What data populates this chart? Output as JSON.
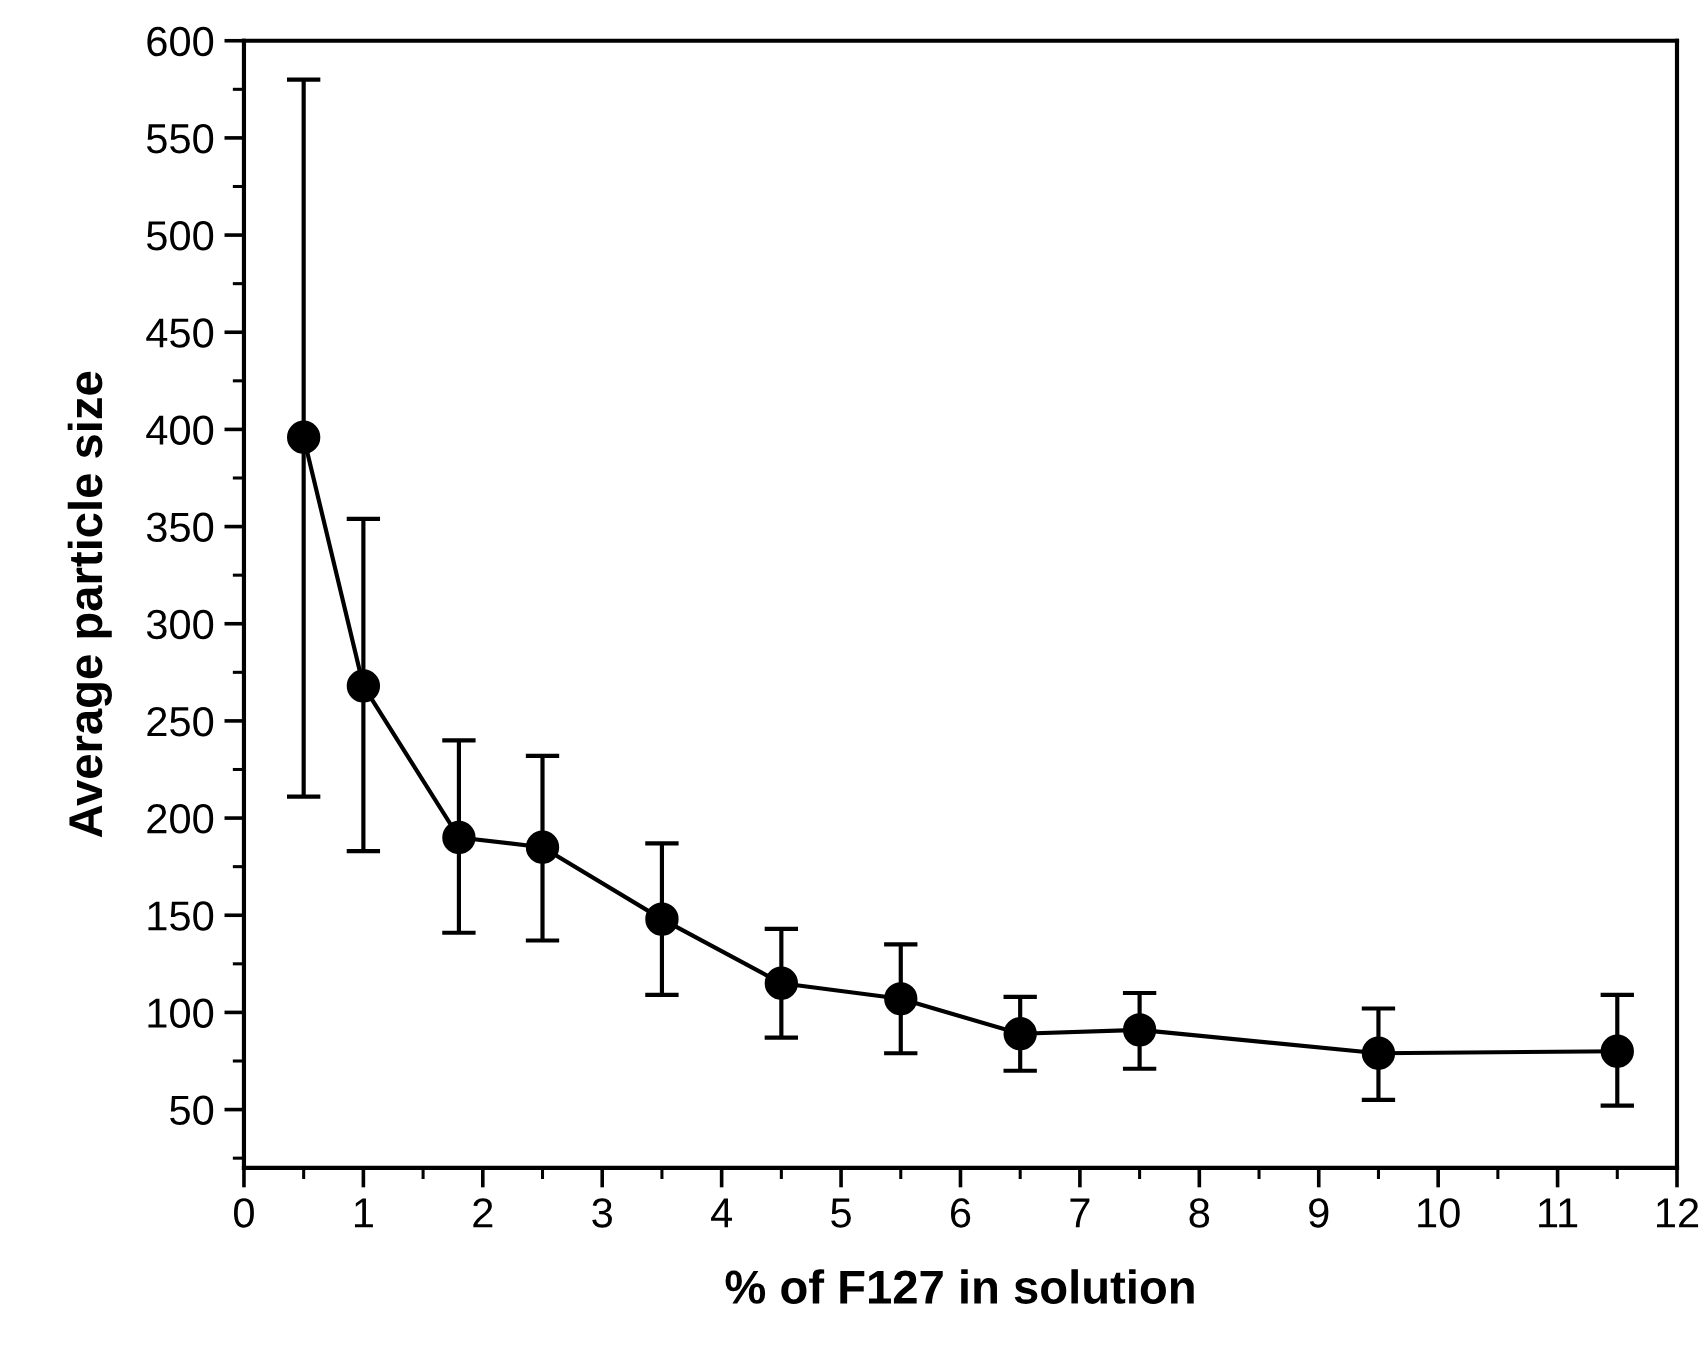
{
  "chart_data": {
    "type": "line",
    "xlabel": "% of F127 in solution",
    "ylabel": "Average particle size",
    "x": [
      0.5,
      1,
      1.8,
      2.5,
      3.5,
      4.5,
      5.5,
      6.5,
      7.5,
      9.5,
      11.5
    ],
    "values": [
      396,
      268,
      190,
      185,
      148,
      115,
      107,
      89,
      91,
      79,
      80
    ],
    "errors": [
      [
        211,
        580
      ],
      [
        183,
        354
      ],
      [
        141,
        240
      ],
      [
        137,
        232
      ],
      [
        109,
        187
      ],
      [
        87,
        143
      ],
      [
        79,
        135
      ],
      [
        70,
        108
      ],
      [
        71,
        110
      ],
      [
        55,
        102
      ],
      [
        52,
        109
      ]
    ],
    "color": "#000000",
    "marker": "circle",
    "line_style": "solid",
    "grid": false,
    "xlim": [
      0,
      12
    ],
    "xticks": [
      0,
      1,
      2,
      3,
      4,
      5,
      6,
      7,
      8,
      9,
      10,
      11,
      12
    ],
    "ylim": [
      20,
      600
    ],
    "yticks": [
      50,
      100,
      150,
      200,
      250,
      300,
      350,
      400,
      450,
      500,
      550,
      600
    ]
  }
}
